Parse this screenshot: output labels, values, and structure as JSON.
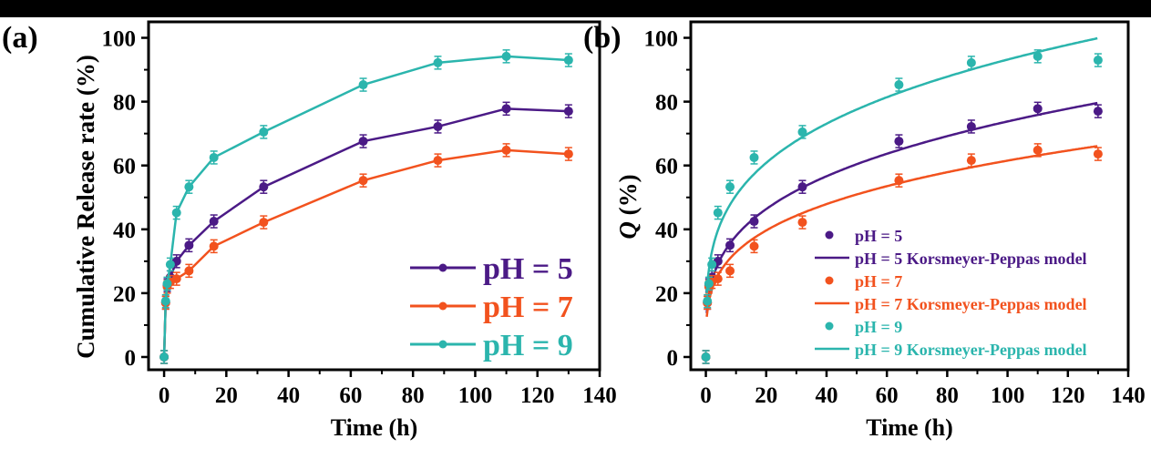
{
  "colors": {
    "pH5": "#4b1a86",
    "pH7": "#f2521e",
    "pH9": "#2bb5ad"
  },
  "chart_data": [
    {
      "type": "line",
      "panel_label": "(a)",
      "xlabel": "Time (h)",
      "ylabel": "Cumulative Release rate (%)",
      "xlim": [
        -5,
        140
      ],
      "ylim": [
        -4,
        105
      ],
      "xticks": [
        0,
        20,
        40,
        60,
        80,
        100,
        120,
        140
      ],
      "yticks": [
        0,
        20,
        40,
        60,
        80,
        100
      ],
      "legend": "bottom-right",
      "grid": false,
      "x": [
        0,
        0.5,
        1,
        2,
        4,
        8,
        16,
        32,
        64,
        88,
        110,
        130
      ],
      "series": [
        {
          "name": "pH = 5",
          "color_key": "pH5",
          "values": [
            0,
            17,
            22.5,
            25,
            30,
            35,
            42.5,
            53.3,
            67.6,
            72.2,
            77.8,
            77
          ]
        },
        {
          "name": "pH = 7",
          "color_key": "pH7",
          "values": [
            0,
            17,
            22,
            23.5,
            24.5,
            27,
            34.7,
            42.2,
            55.3,
            61.6,
            64.8,
            63.6
          ]
        },
        {
          "name": "pH = 9",
          "color_key": "pH9",
          "values": [
            0,
            17.5,
            23,
            29,
            45.2,
            53.3,
            62.5,
            70.5,
            85.3,
            92.2,
            94.2,
            93
          ]
        }
      ]
    },
    {
      "type": "scatter",
      "panel_label": "(b)",
      "xlabel": "Time (h)",
      "ylabel_italic": "Q",
      "ylabel_rest": " (%)",
      "xlim": [
        -5,
        140
      ],
      "ylim": [
        -4,
        105
      ],
      "xticks": [
        0,
        20,
        40,
        60,
        80,
        100,
        120,
        140
      ],
      "yticks": [
        0,
        20,
        40,
        60,
        80,
        100
      ],
      "legend": "bottom-right",
      "grid": false,
      "x": [
        0,
        0.5,
        1,
        2,
        4,
        8,
        16,
        32,
        64,
        88,
        110,
        130
      ],
      "series": [
        {
          "name": "pH = 5",
          "color_key": "pH5",
          "values": [
            0,
            17,
            22.5,
            25,
            30,
            35,
            42.5,
            53.3,
            67.6,
            72.2,
            77.8,
            77
          ]
        },
        {
          "name": "pH = 5 Korsmeyer-Peppas model",
          "color_key": "pH5",
          "model": {
            "k": 19.5,
            "n": 0.289
          }
        },
        {
          "name": "pH = 7",
          "color_key": "pH7",
          "values": [
            0,
            17,
            22,
            23.5,
            24.5,
            27,
            34.7,
            42.2,
            55.3,
            61.6,
            64.8,
            63.6
          ]
        },
        {
          "name": "pH = 7 Korsmeyer-Peppas model",
          "color_key": "pH7",
          "model": {
            "k": 17.5,
            "n": 0.273
          }
        },
        {
          "name": "pH = 9",
          "color_key": "pH9",
          "values": [
            0,
            17.5,
            23,
            29,
            45.2,
            53.3,
            62.5,
            70.5,
            85.3,
            92.2,
            94.2,
            93
          ]
        },
        {
          "name": "pH = 9 Korsmeyer-Peppas model",
          "color_key": "pH9",
          "model": {
            "k": 27.5,
            "n": 0.265
          }
        }
      ]
    }
  ]
}
